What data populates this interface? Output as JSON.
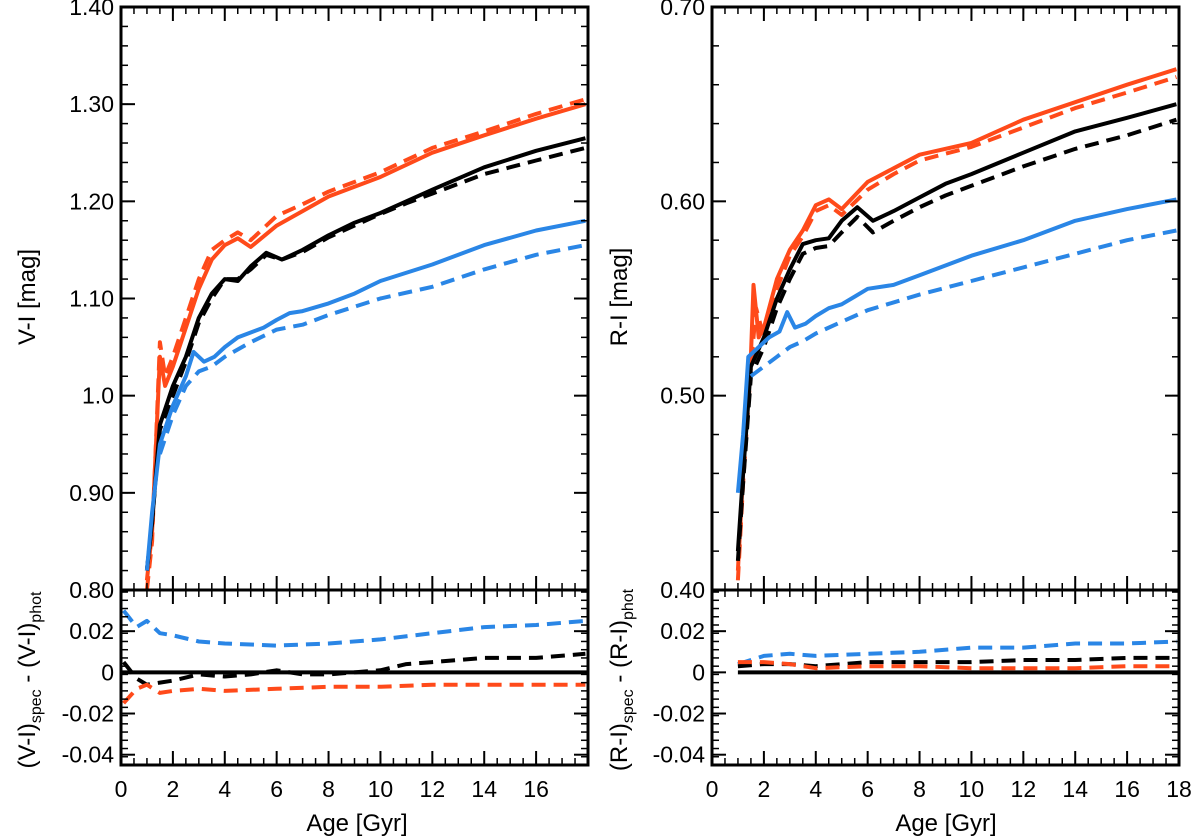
{
  "colors": {
    "red": "#ff4a1a",
    "black": "#000000",
    "blue": "#2a86e6"
  },
  "chart_data": [
    {
      "type": "line",
      "panel": "left-top",
      "ylabel": "V-I [mag]",
      "ylim": [
        0.8,
        1.4
      ],
      "xlim": [
        0,
        18
      ],
      "yticks": [
        0.8,
        0.9,
        1.0,
        1.1,
        1.2,
        1.3,
        1.4
      ],
      "ytick_labels": [
        "0.80",
        "0.90",
        "1.0",
        "1.10",
        "1.20",
        "1.30",
        "1.40"
      ],
      "series": [
        {
          "name": "red solid",
          "color": "red",
          "dash": false,
          "x": [
            1.0,
            1.2,
            1.5,
            1.7,
            2.0,
            2.5,
            3.0,
            3.5,
            4.0,
            4.5,
            5.0,
            6.0,
            7.0,
            8.0,
            10.0,
            12.0,
            14.0,
            16.0,
            17.9
          ],
          "y": [
            0.81,
            0.86,
            1.04,
            1.01,
            1.03,
            1.07,
            1.11,
            1.14,
            1.155,
            1.162,
            1.153,
            1.175,
            1.19,
            1.205,
            1.225,
            1.25,
            1.268,
            1.285,
            1.3
          ]
        },
        {
          "name": "red dashed",
          "color": "red",
          "dash": true,
          "x": [
            1.0,
            1.2,
            1.5,
            1.7,
            2.0,
            2.5,
            3.0,
            3.5,
            4.0,
            4.5,
            5.0,
            6.0,
            7.0,
            8.0,
            10.0,
            12.0,
            14.0,
            16.0,
            17.9
          ],
          "y": [
            0.8,
            0.85,
            1.055,
            1.02,
            1.04,
            1.08,
            1.12,
            1.15,
            1.16,
            1.168,
            1.16,
            1.185,
            1.197,
            1.21,
            1.23,
            1.255,
            1.272,
            1.29,
            1.305
          ]
        },
        {
          "name": "black solid",
          "color": "black",
          "dash": false,
          "x": [
            1.0,
            1.2,
            1.5,
            2.0,
            2.5,
            3.0,
            3.5,
            4.0,
            4.5,
            5.0,
            5.6,
            6.2,
            7.0,
            8.0,
            9.0,
            10.0,
            11.0,
            12.0,
            14.0,
            16.0,
            17.9
          ],
          "y": [
            0.82,
            0.87,
            0.97,
            1.01,
            1.04,
            1.08,
            1.105,
            1.12,
            1.118,
            1.133,
            1.147,
            1.14,
            1.15,
            1.165,
            1.178,
            1.188,
            1.2,
            1.212,
            1.235,
            1.252,
            1.265
          ]
        },
        {
          "name": "black dashed",
          "color": "black",
          "dash": true,
          "x": [
            1.0,
            1.2,
            1.5,
            2.0,
            2.5,
            3.0,
            3.5,
            4.0,
            4.5,
            5.0,
            5.6,
            6.2,
            7.0,
            8.0,
            9.0,
            10.0,
            11.0,
            12.0,
            14.0,
            16.0,
            17.9
          ],
          "y": [
            0.82,
            0.87,
            0.965,
            1.0,
            1.035,
            1.075,
            1.1,
            1.12,
            1.12,
            1.13,
            1.145,
            1.14,
            1.148,
            1.163,
            1.175,
            1.187,
            1.198,
            1.208,
            1.228,
            1.242,
            1.255
          ]
        },
        {
          "name": "blue solid",
          "color": "blue",
          "dash": false,
          "x": [
            1.0,
            1.2,
            1.5,
            2.0,
            2.5,
            2.8,
            3.2,
            3.6,
            4.0,
            4.5,
            5.0,
            5.5,
            6.0,
            6.5,
            7.0,
            8.0,
            9.0,
            10.0,
            12.0,
            14.0,
            16.0,
            17.9
          ],
          "y": [
            0.82,
            0.88,
            0.95,
            0.99,
            1.02,
            1.045,
            1.035,
            1.04,
            1.05,
            1.06,
            1.065,
            1.07,
            1.078,
            1.085,
            1.087,
            1.095,
            1.105,
            1.118,
            1.135,
            1.155,
            1.17,
            1.18
          ]
        },
        {
          "name": "blue dashed",
          "color": "blue",
          "dash": true,
          "x": [
            1.5,
            2.0,
            2.5,
            3.0,
            3.5,
            4.0,
            5.0,
            6.0,
            7.0,
            8.0,
            10.0,
            12.0,
            14.0,
            16.0,
            17.9
          ],
          "y": [
            0.94,
            0.98,
            1.01,
            1.025,
            1.03,
            1.04,
            1.055,
            1.068,
            1.073,
            1.083,
            1.1,
            1.112,
            1.13,
            1.145,
            1.155
          ]
        }
      ]
    },
    {
      "type": "line",
      "panel": "left-bottom",
      "ylabel_main": "(V-I)",
      "ylabel_sub1": "spec",
      "ylabel_mid": " - (V-I)",
      "ylabel_sub2": "phot",
      "xlabel": "Age [Gyr]",
      "ylim": [
        -0.045,
        0.04
      ],
      "xlim": [
        0,
        18
      ],
      "xticks": [
        0,
        2,
        4,
        6,
        8,
        10,
        12,
        14,
        16
      ],
      "xtick_labels": [
        "0",
        "2",
        "4",
        "6",
        "8",
        "10",
        "12",
        "14",
        "16"
      ],
      "yticks": [
        -0.04,
        -0.02,
        0,
        0.02
      ],
      "ytick_labels": [
        "-0.04",
        "-0.02",
        "0",
        "0.02"
      ],
      "series": [
        {
          "name": "zero line",
          "color": "black",
          "dash": false,
          "x": [
            0,
            18
          ],
          "y": [
            0,
            0
          ]
        },
        {
          "name": "blue dashed",
          "color": "blue",
          "dash": true,
          "x": [
            0.1,
            0.6,
            1.0,
            1.5,
            2.0,
            3.0,
            4.0,
            6.0,
            8.0,
            10.0,
            12.0,
            14.0,
            16.0,
            17.9
          ],
          "y": [
            0.03,
            0.022,
            0.025,
            0.019,
            0.018,
            0.015,
            0.014,
            0.013,
            0.014,
            0.016,
            0.019,
            0.022,
            0.023,
            0.025
          ]
        },
        {
          "name": "black dashed",
          "color": "black",
          "dash": true,
          "x": [
            0.1,
            0.6,
            1.0,
            1.5,
            2.0,
            3.0,
            4.0,
            5.0,
            6.0,
            7.0,
            8.0,
            10.0,
            11.0,
            12.0,
            14.0,
            16.0,
            17.9
          ],
          "y": [
            0.005,
            -0.003,
            -0.006,
            -0.005,
            -0.004,
            -0.001,
            -0.002,
            -0.001,
            0.001,
            -0.001,
            -0.001,
            0.001,
            0.004,
            0.005,
            0.007,
            0.007,
            0.009
          ]
        },
        {
          "name": "red dashed",
          "color": "red",
          "dash": true,
          "x": [
            0.1,
            0.6,
            1.0,
            1.5,
            2.0,
            3.0,
            4.0,
            6.0,
            8.0,
            10.0,
            12.0,
            14.0,
            16.0,
            17.9
          ],
          "y": [
            -0.015,
            -0.008,
            -0.006,
            -0.01,
            -0.009,
            -0.008,
            -0.009,
            -0.008,
            -0.007,
            -0.007,
            -0.006,
            -0.006,
            -0.006,
            -0.006
          ]
        }
      ]
    },
    {
      "type": "line",
      "panel": "right-top",
      "ylabel": "R-I [mag]",
      "ylim": [
        0.4,
        0.7
      ],
      "xlim": [
        0,
        18
      ],
      "yticks": [
        0.4,
        0.5,
        0.6,
        0.7
      ],
      "ytick_labels": [
        "0.40",
        "0.50",
        "0.60",
        "0.70"
      ],
      "series": [
        {
          "name": "red solid",
          "color": "red",
          "dash": false,
          "x": [
            1.0,
            1.2,
            1.5,
            1.6,
            1.8,
            2.0,
            2.5,
            3.0,
            3.5,
            4.0,
            4.5,
            5.0,
            6.0,
            7.0,
            8.0,
            10.0,
            12.0,
            14.0,
            16.0,
            17.9
          ],
          "y": [
            0.41,
            0.46,
            0.52,
            0.557,
            0.53,
            0.535,
            0.56,
            0.575,
            0.585,
            0.598,
            0.601,
            0.596,
            0.61,
            0.617,
            0.624,
            0.63,
            0.642,
            0.651,
            0.66,
            0.668
          ]
        },
        {
          "name": "red dashed",
          "color": "red",
          "dash": true,
          "x": [
            1.0,
            1.2,
            1.5,
            1.7,
            2.0,
            2.5,
            3.0,
            3.5,
            4.0,
            4.5,
            5.0,
            6.0,
            7.0,
            8.0,
            10.0,
            12.0,
            14.0,
            16.0,
            17.9
          ],
          "y": [
            0.405,
            0.455,
            0.515,
            0.545,
            0.53,
            0.555,
            0.572,
            0.582,
            0.595,
            0.598,
            0.593,
            0.606,
            0.614,
            0.621,
            0.628,
            0.638,
            0.648,
            0.656,
            0.664
          ]
        },
        {
          "name": "black solid",
          "color": "black",
          "dash": false,
          "x": [
            1.0,
            1.2,
            1.5,
            2.0,
            2.5,
            3.0,
            3.5,
            4.0,
            4.5,
            5.0,
            5.6,
            6.2,
            7.0,
            8.0,
            9.0,
            10.0,
            12.0,
            14.0,
            16.0,
            17.9
          ],
          "y": [
            0.42,
            0.46,
            0.515,
            0.53,
            0.55,
            0.565,
            0.578,
            0.58,
            0.581,
            0.59,
            0.597,
            0.59,
            0.595,
            0.602,
            0.609,
            0.614,
            0.625,
            0.636,
            0.643,
            0.65
          ]
        },
        {
          "name": "black dashed",
          "color": "black",
          "dash": true,
          "x": [
            1.0,
            1.2,
            1.5,
            2.0,
            2.5,
            3.0,
            3.5,
            4.0,
            4.5,
            5.0,
            5.6,
            6.2,
            7.0,
            8.0,
            9.0,
            10.0,
            12.0,
            14.0,
            16.0,
            17.9
          ],
          "y": [
            0.415,
            0.455,
            0.51,
            0.525,
            0.545,
            0.56,
            0.573,
            0.576,
            0.577,
            0.584,
            0.592,
            0.584,
            0.59,
            0.597,
            0.603,
            0.608,
            0.618,
            0.627,
            0.634,
            0.642
          ]
        },
        {
          "name": "blue solid",
          "color": "blue",
          "dash": false,
          "x": [
            1.0,
            1.2,
            1.4,
            1.8,
            2.2,
            2.6,
            2.9,
            3.2,
            3.6,
            4.0,
            4.5,
            5.0,
            5.5,
            6.0,
            7.0,
            8.0,
            10.0,
            12.0,
            14.0,
            16.0,
            17.9
          ],
          "y": [
            0.45,
            0.48,
            0.52,
            0.525,
            0.53,
            0.533,
            0.543,
            0.535,
            0.537,
            0.541,
            0.545,
            0.547,
            0.551,
            0.555,
            0.557,
            0.562,
            0.572,
            0.58,
            0.59,
            0.596,
            0.601
          ]
        },
        {
          "name": "blue dashed",
          "color": "blue",
          "dash": true,
          "x": [
            1.5,
            2.0,
            2.5,
            3.0,
            3.5,
            4.0,
            5.0,
            6.0,
            7.0,
            8.0,
            10.0,
            12.0,
            14.0,
            16.0,
            17.9
          ],
          "y": [
            0.51,
            0.515,
            0.52,
            0.525,
            0.528,
            0.532,
            0.538,
            0.544,
            0.548,
            0.552,
            0.559,
            0.566,
            0.573,
            0.58,
            0.585
          ]
        }
      ]
    },
    {
      "type": "line",
      "panel": "right-bottom",
      "ylabel_main": "(R-I)",
      "ylabel_sub1": "spec",
      "ylabel_mid": " - (R-I)",
      "ylabel_sub2": "phot",
      "xlabel": "Age [Gyr]",
      "ylim": [
        -0.045,
        0.04
      ],
      "xlim": [
        0,
        18
      ],
      "xticks": [
        0,
        2,
        4,
        6,
        8,
        10,
        12,
        14,
        16,
        18
      ],
      "xtick_labels": [
        "0",
        "2",
        "4",
        "6",
        "8",
        "10",
        "12",
        "14",
        "16",
        "18"
      ],
      "yticks": [
        -0.04,
        -0.02,
        0,
        0.02
      ],
      "ytick_labels": [
        "-0.04",
        "-0.02",
        "0",
        "0.02"
      ],
      "series": [
        {
          "name": "zero line",
          "color": "black",
          "dash": false,
          "x": [
            1,
            18
          ],
          "y": [
            0,
            0
          ]
        },
        {
          "name": "blue dashed",
          "color": "blue",
          "dash": true,
          "x": [
            1.0,
            2.0,
            3.0,
            4.0,
            6.0,
            8.0,
            10.0,
            12.0,
            14.0,
            16.0,
            17.9
          ],
          "y": [
            0.004,
            0.008,
            0.009,
            0.008,
            0.009,
            0.01,
            0.012,
            0.012,
            0.014,
            0.014,
            0.015
          ]
        },
        {
          "name": "black dashed",
          "color": "black",
          "dash": true,
          "x": [
            1.0,
            2.0,
            3.0,
            4.0,
            6.0,
            8.0,
            10.0,
            12.0,
            14.0,
            16.0,
            17.9
          ],
          "y": [
            0.003,
            0.004,
            0.004,
            0.003,
            0.005,
            0.005,
            0.005,
            0.006,
            0.006,
            0.007,
            0.007
          ]
        },
        {
          "name": "red dashed",
          "color": "red",
          "dash": true,
          "x": [
            1.0,
            2.0,
            3.0,
            4.0,
            6.0,
            8.0,
            10.0,
            12.0,
            14.0,
            16.0,
            17.9
          ],
          "y": [
            0.005,
            0.005,
            0.004,
            0.002,
            0.003,
            0.003,
            0.002,
            0.002,
            0.002,
            0.003,
            0.003
          ]
        }
      ]
    }
  ]
}
